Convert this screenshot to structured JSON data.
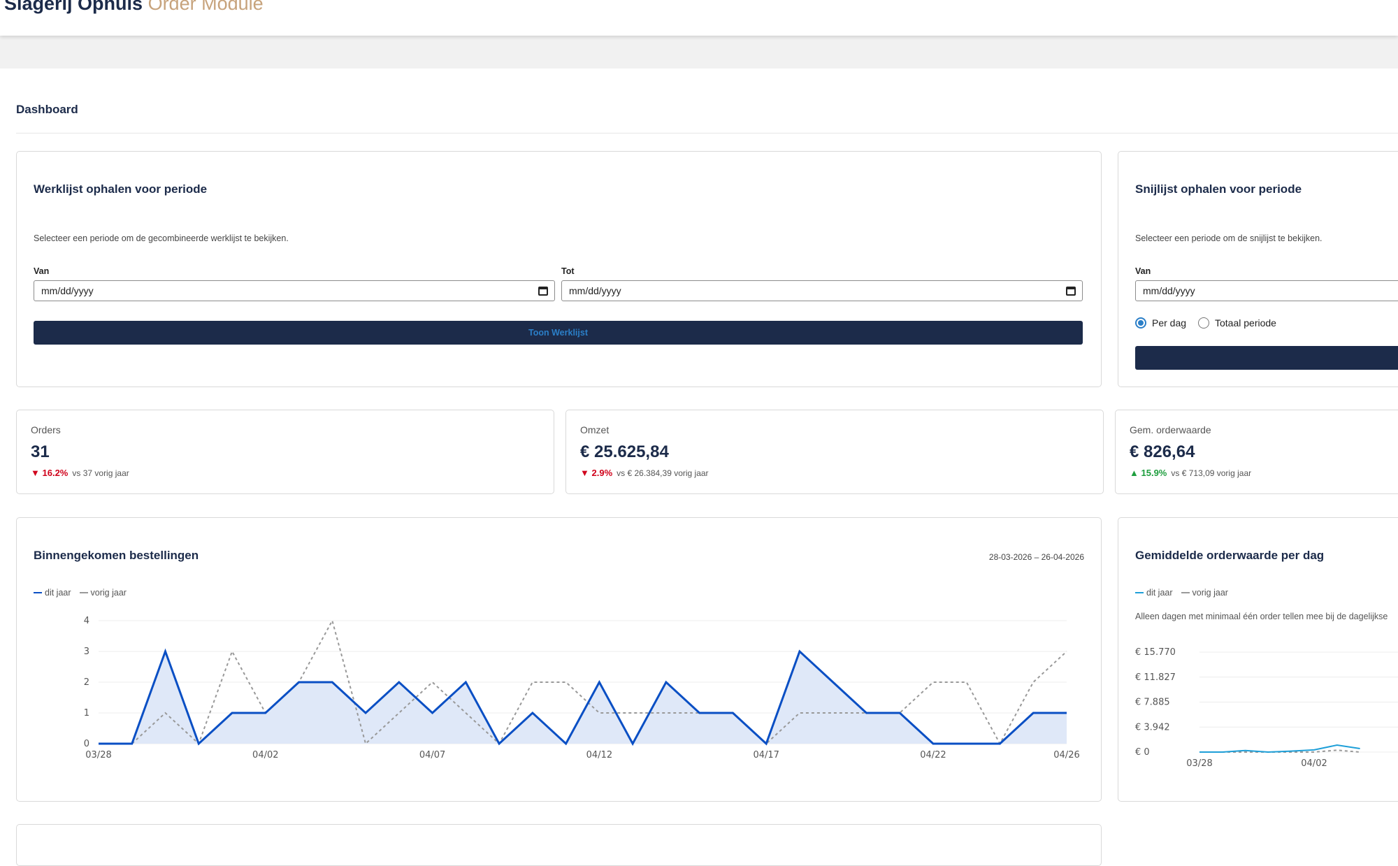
{
  "header": {
    "brand": "Slagerij Ophuis",
    "module": "Order Module"
  },
  "page": {
    "title": "Dashboard"
  },
  "werklijst": {
    "title": "Werklijst ophalen voor periode",
    "description": "Selecteer een periode om de gecombineerde werklijst te bekijken.",
    "from_label": "Van",
    "from_placeholder": "mm/dd/yyyy",
    "to_label": "Tot",
    "to_placeholder": "mm/dd/yyyy",
    "button": "Toon Werklijst"
  },
  "snijlijst": {
    "title": "Snijlijst ophalen voor periode",
    "description": "Selecteer een periode om de snijlijst te bekijken.",
    "from_label": "Van",
    "from_placeholder": "mm/dd/yyyy",
    "options": [
      {
        "label": "Per dag",
        "checked": true
      },
      {
        "label": "Totaal periode",
        "checked": false
      }
    ]
  },
  "stats": [
    {
      "label": "Orders",
      "value": "31",
      "trend": "down",
      "arrow": "▼",
      "pct": "16.2%",
      "compare": "vs 37 vorig jaar"
    },
    {
      "label": "Omzet",
      "value": "€ 25.625,84",
      "trend": "down",
      "arrow": "▼",
      "pct": "2.9%",
      "compare": "vs € 26.384,39 vorig jaar"
    },
    {
      "label": "Gem. orderwaarde",
      "value": "€ 826,64",
      "trend": "up",
      "arrow": "▲",
      "pct": "15.9%",
      "compare": "vs € 713,09 vorig jaar"
    }
  ],
  "orders_chart": {
    "title": "Binnengekomen bestellingen",
    "range": "28-03-2026 – 26-04-2026",
    "legend_current": "dit jaar",
    "legend_previous": "vorig jaar",
    "colors": {
      "current": "#0a4fc4",
      "fill": "#dfe8f8",
      "previous": "#999999"
    }
  },
  "avg_chart": {
    "title": "Gemiddelde orderwaarde per dag",
    "legend_current": "dit jaar",
    "legend_previous": "vorig jaar",
    "note": "Alleen dagen met minimaal één order tellen mee bij de dagelijkse",
    "colors": {
      "current": "#1e9fd8",
      "previous": "#999999"
    }
  },
  "chart_data": [
    {
      "type": "area",
      "title": "Binnengekomen bestellingen",
      "x_ticks": [
        "03/28",
        "04/02",
        "04/07",
        "04/12",
        "04/17",
        "04/22",
        "04/26"
      ],
      "y_ticks": [
        "0",
        "1",
        "2",
        "3",
        "4"
      ],
      "ylim": [
        0,
        4
      ],
      "grid": true,
      "legend": "top-left",
      "series": [
        {
          "name": "dit jaar",
          "style": "solid",
          "values": [
            0,
            0,
            3,
            0,
            1,
            1,
            2,
            2,
            1,
            2,
            1,
            2,
            0,
            1,
            0,
            2,
            0,
            2,
            1,
            1,
            0,
            3,
            2,
            1,
            1,
            0,
            0,
            0,
            1,
            1
          ]
        },
        {
          "name": "vorig jaar",
          "style": "dashed",
          "values": [
            0,
            0,
            1,
            0,
            3,
            1,
            2,
            4,
            0,
            1,
            2,
            1,
            0,
            2,
            2,
            1,
            1,
            1,
            1,
            1,
            0,
            1,
            1,
            1,
            1,
            2,
            2,
            0,
            2,
            3
          ]
        }
      ]
    },
    {
      "type": "line",
      "title": "Gemiddelde orderwaarde per dag",
      "x_ticks": [
        "03/28",
        "04/02"
      ],
      "y_ticks": [
        "€ 0",
        "€ 3.942",
        "€ 7.885",
        "€ 11.827",
        "€ 15.770"
      ],
      "ylim": [
        0,
        15770
      ],
      "grid": true,
      "legend": "top-left",
      "series": [
        {
          "name": "dit jaar",
          "style": "solid",
          "values": [
            0,
            0,
            250,
            0,
            150,
            350,
            1100,
            550
          ]
        },
        {
          "name": "vorig jaar",
          "style": "dashed",
          "values": [
            0,
            0,
            0,
            0,
            0,
            0,
            300,
            0
          ]
        }
      ]
    }
  ]
}
